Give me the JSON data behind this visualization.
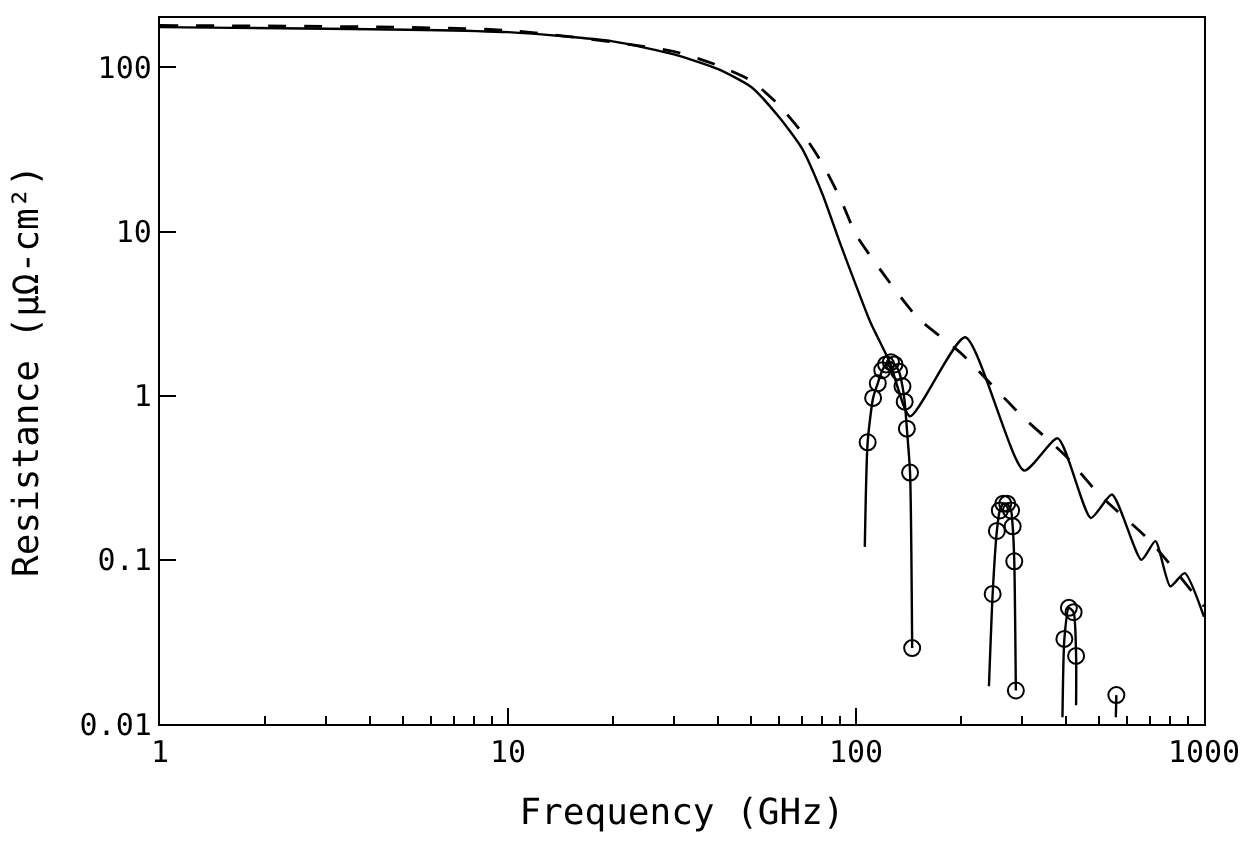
{
  "chart_data": {
    "type": "line",
    "xlabel": "Frequency (GHz)",
    "ylabel": "Resistance (μΩ-cm²)",
    "log": "xy",
    "xlim": [
      1,
      1000
    ],
    "ylim": [
      0.01,
      200
    ],
    "xticks": [
      1,
      10,
      100,
      1000
    ],
    "yticks": [
      0.01,
      0.1,
      1,
      10,
      100
    ],
    "series": [
      {
        "color": "#000000",
        "line_style": "solid",
        "marker": "none",
        "x": [
          1,
          10,
          20,
          30,
          40,
          50,
          60,
          70,
          80,
          90,
          100,
          110,
          125,
          143,
          206,
          304,
          380,
          473,
          544,
          661,
          725,
          800,
          880,
          1000
        ],
        "values": [
          176,
          164,
          144,
          120,
          98,
          76,
          50,
          32,
          17,
          8.5,
          4.7,
          2.8,
          1.6,
          0.75,
          2.27,
          0.35,
          0.55,
          0.18,
          0.25,
          0.1,
          0.13,
          0.069,
          0.083,
          0.045
        ]
      },
      {
        "color": "#000000",
        "line_style": "dashed",
        "marker": "none",
        "x": [
          1,
          10,
          30,
          40,
          50,
          60,
          70,
          80,
          90,
          100,
          120,
          150,
          200,
          300,
          400,
          500,
          700,
          1000
        ],
        "values": [
          180,
          168,
          125,
          103,
          83,
          59,
          40,
          26,
          16,
          9.6,
          5.5,
          3.0,
          1.82,
          0.75,
          0.43,
          0.25,
          0.13,
          0.052
        ]
      },
      {
        "color": "#000000",
        "line_style": "solid",
        "marker": "none",
        "x": [
          106,
          108,
          112,
          115.5,
          119,
          122,
          126,
          129,
          133,
          136,
          138,
          140,
          143,
          145,
          null,
          241,
          247,
          254,
          259,
          265,
          272,
          279,
          282,
          285,
          288,
          null,
          392,
          397,
          409,
          422,
          429,
          429,
          null,
          558,
          560
        ],
        "values": [
          0.12,
          0.52,
          0.97,
          1.19,
          1.43,
          1.55,
          1.6,
          1.55,
          1.4,
          1.14,
          0.92,
          0.63,
          0.34,
          0.029,
          null,
          0.017,
          0.062,
          0.15,
          0.2,
          0.22,
          0.22,
          0.2,
          0.16,
          0.098,
          0.016,
          null,
          0.011,
          0.033,
          0.051,
          0.048,
          0.026,
          0.013,
          null,
          0.011,
          0.015
        ]
      },
      {
        "type": "scatter",
        "color": "#000000",
        "marker": "circle",
        "x": [
          108,
          112,
          115.5,
          119,
          122,
          126,
          129,
          133,
          136,
          138,
          140,
          143,
          145,
          247,
          254,
          259,
          265,
          272,
          279,
          282,
          285,
          288,
          397,
          409,
          422,
          429,
          560
        ],
        "values": [
          0.52,
          0.97,
          1.19,
          1.43,
          1.55,
          1.6,
          1.55,
          1.4,
          1.14,
          0.92,
          0.63,
          0.34,
          0.029,
          0.062,
          0.15,
          0.2,
          0.22,
          0.22,
          0.2,
          0.16,
          0.098,
          0.016,
          0.033,
          0.051,
          0.048,
          0.026,
          0.015
        ]
      }
    ]
  }
}
